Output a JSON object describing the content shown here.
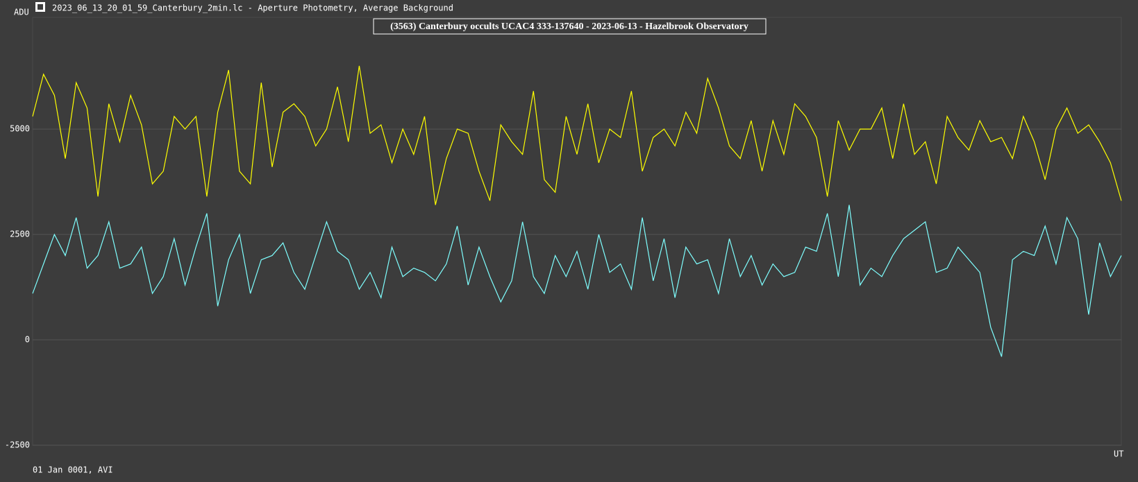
{
  "header": "2023_06_13_20_01_59_Canterbury_2min.lc - Aperture Photometry, Average Background",
  "chart_data": {
    "type": "line",
    "title": "(3563) Canterbury occults UCAC4 333-137640 - 2023-06-13 - Hazelbrook Observatory",
    "ylabel": "ADU",
    "xlabel": "UT",
    "footer": "01 Jan 0001, AVI",
    "ylim": [
      -2500,
      7650
    ],
    "yticks": [
      -2500,
      0,
      2500,
      5000
    ],
    "grid": true,
    "series": [
      {
        "color": "#ffff00",
        "values": [
          5300,
          6300,
          5800,
          4300,
          6100,
          5500,
          3400,
          5600,
          4700,
          5800,
          5100,
          3700,
          4000,
          5300,
          5000,
          5300,
          3400,
          5400,
          6400,
          4000,
          3700,
          6100,
          4100,
          5400,
          5600,
          5300,
          4600,
          5000,
          6000,
          4700,
          6500,
          4900,
          5100,
          4200,
          5000,
          4400,
          5300,
          3200,
          4300,
          5000,
          4900,
          4000,
          3300,
          5100,
          4700,
          4400,
          5900,
          3800,
          3500,
          5300,
          4400,
          5600,
          4200,
          5000,
          4800,
          5900,
          4000,
          4800,
          5000,
          4600,
          5400,
          4900,
          6200,
          5500,
          4600,
          4300,
          5200,
          4000,
          5200,
          4400,
          5600,
          5300,
          4800,
          3400,
          5200,
          4500,
          5000,
          5000,
          5500,
          4300,
          5600,
          4400,
          4700,
          3700,
          5300,
          4800,
          4500,
          5200,
          4700,
          4800,
          4300,
          5300,
          4700,
          3800,
          5000,
          5500,
          4900,
          5100,
          4700,
          4200,
          3300
        ]
      },
      {
        "color": "#7fffff",
        "values": [
          1100,
          1800,
          2500,
          2000,
          2900,
          1700,
          2000,
          2800,
          1700,
          1800,
          2200,
          1100,
          1500,
          2400,
          1300,
          2200,
          3000,
          800,
          1900,
          2500,
          1100,
          1900,
          2000,
          2300,
          1600,
          1200,
          2000,
          2800,
          2100,
          1900,
          1200,
          1600,
          1000,
          2200,
          1500,
          1700,
          1600,
          1400,
          1800,
          2700,
          1300,
          2200,
          1500,
          900,
          1400,
          2800,
          1500,
          1100,
          2000,
          1500,
          2100,
          1200,
          2500,
          1600,
          1800,
          1200,
          2900,
          1400,
          2400,
          1000,
          2200,
          1800,
          1900,
          1100,
          2400,
          1500,
          2000,
          1300,
          1800,
          1500,
          1600,
          2200,
          2100,
          3000,
          1500,
          3200,
          1300,
          1700,
          1500,
          2000,
          2400,
          2600,
          2800,
          1600,
          1700,
          2200,
          1900,
          1600,
          300,
          -400,
          1900,
          2100,
          2000,
          2700,
          1800,
          2900,
          2400,
          600,
          2300,
          1500,
          2000
        ]
      }
    ]
  }
}
